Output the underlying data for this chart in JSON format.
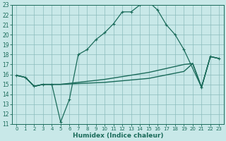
{
  "xlabel": "Humidex (Indice chaleur)",
  "bg_color": "#c8e8e8",
  "grid_color": "#8bbcbc",
  "line_color": "#1a6b5a",
  "xlim": [
    -0.5,
    23.5
  ],
  "ylim": [
    11,
    23
  ],
  "xticks": [
    0,
    1,
    2,
    3,
    4,
    5,
    6,
    7,
    8,
    9,
    10,
    11,
    12,
    13,
    14,
    15,
    16,
    17,
    18,
    19,
    20,
    21,
    22,
    23
  ],
  "yticks": [
    11,
    12,
    13,
    14,
    15,
    16,
    17,
    18,
    19,
    20,
    21,
    22,
    23
  ],
  "line1_x": [
    0,
    1,
    2,
    3,
    4,
    5,
    6,
    7,
    8,
    9,
    10,
    11,
    12,
    13,
    14,
    15,
    16,
    17,
    18,
    19,
    21,
    22,
    23
  ],
  "line1_y": [
    15.9,
    15.7,
    14.8,
    15.0,
    15.0,
    11.2,
    13.5,
    18.0,
    18.5,
    19.5,
    20.2,
    21.1,
    22.3,
    22.3,
    23.0,
    23.3,
    22.5,
    21.0,
    20.0,
    18.5,
    14.7,
    17.8,
    17.6
  ],
  "line2_x": [
    0,
    1,
    2,
    3,
    4,
    5,
    10,
    15,
    19,
    20,
    21,
    22,
    23
  ],
  "line2_y": [
    15.9,
    15.7,
    14.8,
    15.0,
    15.0,
    15.0,
    15.5,
    16.2,
    17.0,
    17.1,
    14.7,
    17.8,
    17.6
  ],
  "line3_x": [
    0,
    1,
    2,
    3,
    4,
    5,
    10,
    15,
    19,
    20,
    21,
    22,
    23
  ],
  "line3_y": [
    15.9,
    15.7,
    14.8,
    15.0,
    15.0,
    15.0,
    15.2,
    15.6,
    16.3,
    17.1,
    14.7,
    17.8,
    17.6
  ]
}
